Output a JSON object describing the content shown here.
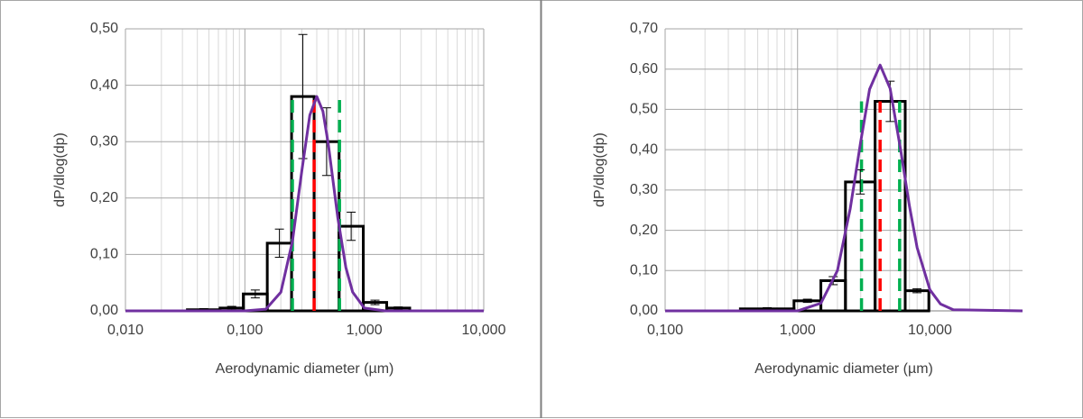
{
  "chart_data": [
    {
      "type": "histogram",
      "xlabel": "Aerodynamic diameter (µm)",
      "ylabel": "dP/dlog(dp)",
      "xscale": "log",
      "grid": true,
      "minor_grid": true,
      "color": "#000000",
      "xlim": [
        0.01,
        10
      ],
      "ylim": [
        0,
        0.5
      ],
      "xticks": [
        {
          "value": 0.01,
          "label": "0,010"
        },
        {
          "value": 0.1,
          "label": "0,100"
        },
        {
          "value": 1,
          "label": "1,000"
        },
        {
          "value": 10,
          "label": "10,000"
        }
      ],
      "yticks": [
        {
          "value": 0,
          "label": "0,00"
        },
        {
          "value": 0.1,
          "label": "0,10"
        },
        {
          "value": 0.2,
          "label": "0,20"
        },
        {
          "value": 0.3,
          "label": "0,30"
        },
        {
          "value": 0.4,
          "label": "0,40"
        },
        {
          "value": 0.5,
          "label": "0,50"
        }
      ],
      "bins": [
        0.033,
        0.062,
        0.097,
        0.154,
        0.246,
        0.38,
        0.615,
        0.98,
        1.54,
        2.4
      ],
      "values": [
        0.002,
        0.005,
        0.03,
        0.12,
        0.38,
        0.3,
        0.15,
        0.015,
        0.005
      ],
      "errors": [
        0.002,
        0.003,
        0.007,
        0.025,
        0.11,
        0.06,
        0.025,
        0.004,
        0.002
      ],
      "markers": [
        {
          "x": 0.25,
          "top": 0.38,
          "color": "#00b050"
        },
        {
          "x": 0.62,
          "top": 0.38,
          "color": "#00b050"
        },
        {
          "x": 0.38,
          "top": 0.38,
          "color": "#ff0000"
        }
      ],
      "fit": {
        "color": "#7030a0",
        "x": [
          0.01,
          0.1,
          0.15,
          0.2,
          0.25,
          0.3,
          0.35,
          0.4,
          0.45,
          0.5,
          0.6,
          0.7,
          0.8,
          1,
          1.5,
          10
        ],
        "y": [
          0,
          0,
          0.003,
          0.033,
          0.123,
          0.249,
          0.347,
          0.38,
          0.354,
          0.295,
          0.165,
          0.077,
          0.033,
          0.005,
          0,
          0
        ]
      }
    },
    {
      "type": "histogram",
      "xlabel": "Aerodynamic diameter (µm)",
      "ylabel": "dP/dlog(dp)",
      "xscale": "log",
      "grid": true,
      "minor_grid": true,
      "color": "#000000",
      "xlim": [
        0.1,
        50
      ],
      "ylim": [
        0,
        0.7
      ],
      "xticks": [
        {
          "value": 0.1,
          "label": "0,100"
        },
        {
          "value": 1,
          "label": "1,000"
        },
        {
          "value": 10,
          "label": "10,000"
        }
      ],
      "yticks": [
        {
          "value": 0,
          "label": "0,00"
        },
        {
          "value": 0.1,
          "label": "0,10"
        },
        {
          "value": 0.2,
          "label": "0,20"
        },
        {
          "value": 0.3,
          "label": "0,30"
        },
        {
          "value": 0.4,
          "label": "0,40"
        },
        {
          "value": 0.5,
          "label": "0,50"
        },
        {
          "value": 0.6,
          "label": "0,60"
        },
        {
          "value": 0.7,
          "label": "0,70"
        }
      ],
      "bins": [
        0.37,
        0.94,
        1.5,
        2.3,
        3.85,
        6.5,
        9.8
      ],
      "values": [
        0.005,
        0.025,
        0.075,
        0.32,
        0.52,
        0.05
      ],
      "errors": [
        0.003,
        0.004,
        0.01,
        0.03,
        0.05,
        0.005
      ],
      "markers": [
        {
          "x": 3.04,
          "top": 0.52,
          "color": "#00b050"
        },
        {
          "x": 5.9,
          "top": 0.52,
          "color": "#00b050"
        },
        {
          "x": 4.2,
          "top": 0.52,
          "color": "#ff0000"
        }
      ],
      "fit": {
        "color": "#7030a0",
        "x": [
          0.1,
          1,
          1.5,
          2,
          2.5,
          3,
          3.5,
          4.2,
          5,
          6,
          7,
          8,
          10,
          12,
          15,
          50
        ],
        "y": [
          0,
          0,
          0.019,
          0.1,
          0.254,
          0.42,
          0.55,
          0.61,
          0.552,
          0.4,
          0.26,
          0.157,
          0.052,
          0.017,
          0.003,
          0
        ]
      }
    }
  ]
}
